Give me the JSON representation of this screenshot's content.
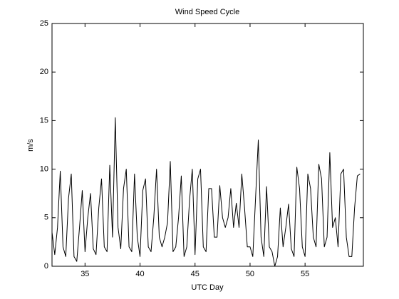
{
  "chart_data": {
    "type": "line",
    "title": "Wind Speed Cycle",
    "x_label": "UTC Day",
    "y_label": "m/s",
    "x": [
      32,
      32.25,
      32.5,
      32.75,
      33,
      33.25,
      33.5,
      33.75,
      34,
      34.25,
      34.5,
      34.75,
      35,
      35.25,
      35.5,
      35.75,
      36,
      36.25,
      36.5,
      36.75,
      37,
      37.25,
      37.5,
      37.75,
      38,
      38.25,
      38.5,
      38.75,
      39,
      39.25,
      39.5,
      39.75,
      40,
      40.25,
      40.5,
      40.75,
      41,
      41.25,
      41.5,
      41.75,
      42,
      42.25,
      42.5,
      42.75,
      43,
      43.25,
      43.5,
      43.75,
      44,
      44.25,
      44.5,
      44.75,
      45,
      45.25,
      45.5,
      45.75,
      46,
      46.25,
      46.5,
      46.75,
      47,
      47.25,
      47.5,
      47.75,
      48,
      48.25,
      48.5,
      48.75,
      49,
      49.25,
      49.5,
      49.75,
      50,
      50.25,
      50.5,
      50.75,
      51,
      51.25,
      51.5,
      51.75,
      52,
      52.25,
      52.5,
      52.75,
      53,
      53.25,
      53.5,
      53.75,
      54,
      54.25,
      54.5,
      54.75,
      55,
      55.25,
      55.5,
      55.75,
      56,
      56.25,
      56.5,
      56.75,
      57,
      57.25,
      57.5,
      57.75,
      58,
      58.25,
      58.5,
      58.75,
      59,
      59.25,
      59.5,
      59.75,
      60
    ],
    "series": [
      {
        "name": "Wind Speed",
        "color": "#000000",
        "values": [
          3.5,
          1.2,
          4,
          9.8,
          2,
          1,
          7,
          9.5,
          1,
          0.5,
          4,
          7.8,
          1.5,
          5,
          7.5,
          1.8,
          1.2,
          6,
          9,
          2,
          1.5,
          10.4,
          3,
          15.3,
          4,
          1.8,
          8,
          10,
          2,
          1.5,
          9.5,
          3,
          1,
          7.8,
          9,
          2,
          1.5,
          5,
          10,
          3,
          2,
          3,
          4.5,
          10.8,
          1.5,
          2,
          5,
          9.3,
          1,
          2,
          6.8,
          10,
          1.2,
          9,
          10,
          2,
          1.5,
          8,
          8,
          3,
          3,
          8.3,
          5,
          4,
          5,
          8,
          4,
          6.5,
          4,
          9.5,
          6,
          2,
          2,
          1,
          7,
          13,
          3,
          1,
          8.2,
          2,
          1.5,
          0,
          1,
          6,
          2,
          4,
          6.4,
          1.8,
          1,
          10.2,
          8,
          2,
          1,
          9.5,
          8,
          3,
          2,
          10.5,
          9,
          2,
          3,
          11.7,
          4,
          5,
          2,
          9.5,
          10,
          3,
          1,
          1,
          6,
          9.3,
          9.5
        ]
      }
    ],
    "xlim": [
      32,
      60.3
    ],
    "ylim": [
      0,
      25
    ],
    "xticks": [
      35,
      40,
      45,
      50,
      55
    ],
    "yticks": [
      0,
      5,
      10,
      15,
      20,
      25
    ]
  }
}
